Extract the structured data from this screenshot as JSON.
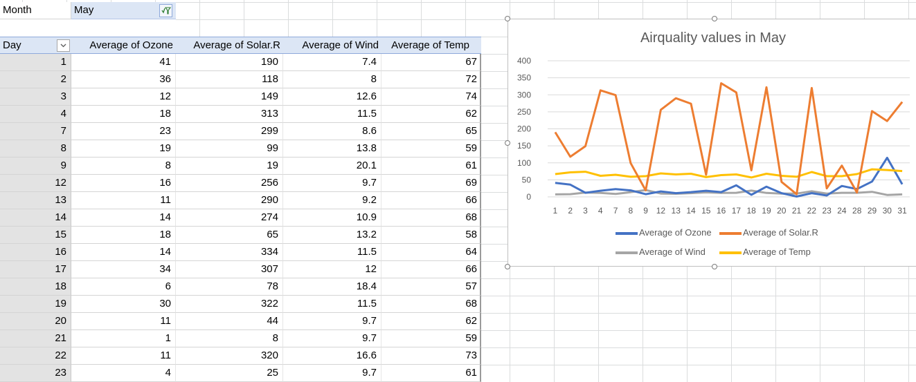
{
  "filter": {
    "label": "Month",
    "value": "May",
    "button_icon": "filter-active-icon"
  },
  "pivot": {
    "headers": {
      "day": "Day",
      "ozone": "Average of Ozone",
      "solar": "Average of Solar.R",
      "wind": "Average of Wind",
      "temp": "Average of Temp"
    },
    "row_filter_icon": "chevron-down-icon",
    "rows": [
      {
        "day": "1",
        "ozone": "41",
        "solar": "190",
        "wind": "7.4",
        "temp": "67"
      },
      {
        "day": "2",
        "ozone": "36",
        "solar": "118",
        "wind": "8",
        "temp": "72"
      },
      {
        "day": "3",
        "ozone": "12",
        "solar": "149",
        "wind": "12.6",
        "temp": "74"
      },
      {
        "day": "4",
        "ozone": "18",
        "solar": "313",
        "wind": "11.5",
        "temp": "62"
      },
      {
        "day": "7",
        "ozone": "23",
        "solar": "299",
        "wind": "8.6",
        "temp": "65"
      },
      {
        "day": "8",
        "ozone": "19",
        "solar": "99",
        "wind": "13.8",
        "temp": "59"
      },
      {
        "day": "9",
        "ozone": "8",
        "solar": "19",
        "wind": "20.1",
        "temp": "61"
      },
      {
        "day": "12",
        "ozone": "16",
        "solar": "256",
        "wind": "9.7",
        "temp": "69"
      },
      {
        "day": "13",
        "ozone": "11",
        "solar": "290",
        "wind": "9.2",
        "temp": "66"
      },
      {
        "day": "14",
        "ozone": "14",
        "solar": "274",
        "wind": "10.9",
        "temp": "68"
      },
      {
        "day": "15",
        "ozone": "18",
        "solar": "65",
        "wind": "13.2",
        "temp": "58"
      },
      {
        "day": "16",
        "ozone": "14",
        "solar": "334",
        "wind": "11.5",
        "temp": "64"
      },
      {
        "day": "17",
        "ozone": "34",
        "solar": "307",
        "wind": "12",
        "temp": "66"
      },
      {
        "day": "18",
        "ozone": "6",
        "solar": "78",
        "wind": "18.4",
        "temp": "57"
      },
      {
        "day": "19",
        "ozone": "30",
        "solar": "322",
        "wind": "11.5",
        "temp": "68"
      },
      {
        "day": "20",
        "ozone": "11",
        "solar": "44",
        "wind": "9.7",
        "temp": "62"
      },
      {
        "day": "21",
        "ozone": "1",
        "solar": "8",
        "wind": "9.7",
        "temp": "59"
      },
      {
        "day": "22",
        "ozone": "11",
        "solar": "320",
        "wind": "16.6",
        "temp": "73"
      },
      {
        "day": "23",
        "ozone": "4",
        "solar": "25",
        "wind": "9.7",
        "temp": "61"
      }
    ]
  },
  "chart_data": {
    "type": "line",
    "title": "Airquality values in May",
    "xlabel": "",
    "ylabel": "",
    "ylim": [
      0,
      400
    ],
    "yticks": [
      0,
      50,
      100,
      150,
      200,
      250,
      300,
      350,
      400
    ],
    "grid": true,
    "legend_position": "bottom",
    "categories": [
      "1",
      "2",
      "3",
      "4",
      "7",
      "8",
      "9",
      "12",
      "13",
      "14",
      "15",
      "16",
      "17",
      "18",
      "19",
      "20",
      "21",
      "22",
      "23",
      "24",
      "28",
      "29",
      "30",
      "31"
    ],
    "series": [
      {
        "name": "Average of Ozone",
        "color": "#4472c4",
        "values": [
          41,
          36,
          12,
          18,
          23,
          19,
          8,
          16,
          11,
          14,
          18,
          14,
          34,
          6,
          30,
          11,
          1,
          11,
          4,
          32,
          23,
          45,
          115,
          37
        ]
      },
      {
        "name": "Average of Solar.R",
        "color": "#ed7d31",
        "values": [
          190,
          118,
          149,
          313,
          299,
          99,
          19,
          256,
          290,
          274,
          65,
          334,
          307,
          78,
          322,
          44,
          8,
          320,
          25,
          92,
          13,
          252,
          223,
          279
        ]
      },
      {
        "name": "Average of Wind",
        "color": "#a5a5a5",
        "values": [
          7.4,
          8,
          12.6,
          11.5,
          8.6,
          13.8,
          20.1,
          9.7,
          9.2,
          10.9,
          13.2,
          11.5,
          12,
          18.4,
          11.5,
          9.7,
          9.7,
          16.6,
          9.7,
          12,
          12,
          14.9,
          5.7,
          7.4
        ]
      },
      {
        "name": "Average of Temp",
        "color": "#ffc000",
        "values": [
          67,
          72,
          74,
          62,
          65,
          59,
          61,
          69,
          66,
          68,
          58,
          64,
          66,
          57,
          68,
          62,
          59,
          73,
          61,
          61,
          67,
          81,
          79,
          76
        ]
      }
    ]
  }
}
